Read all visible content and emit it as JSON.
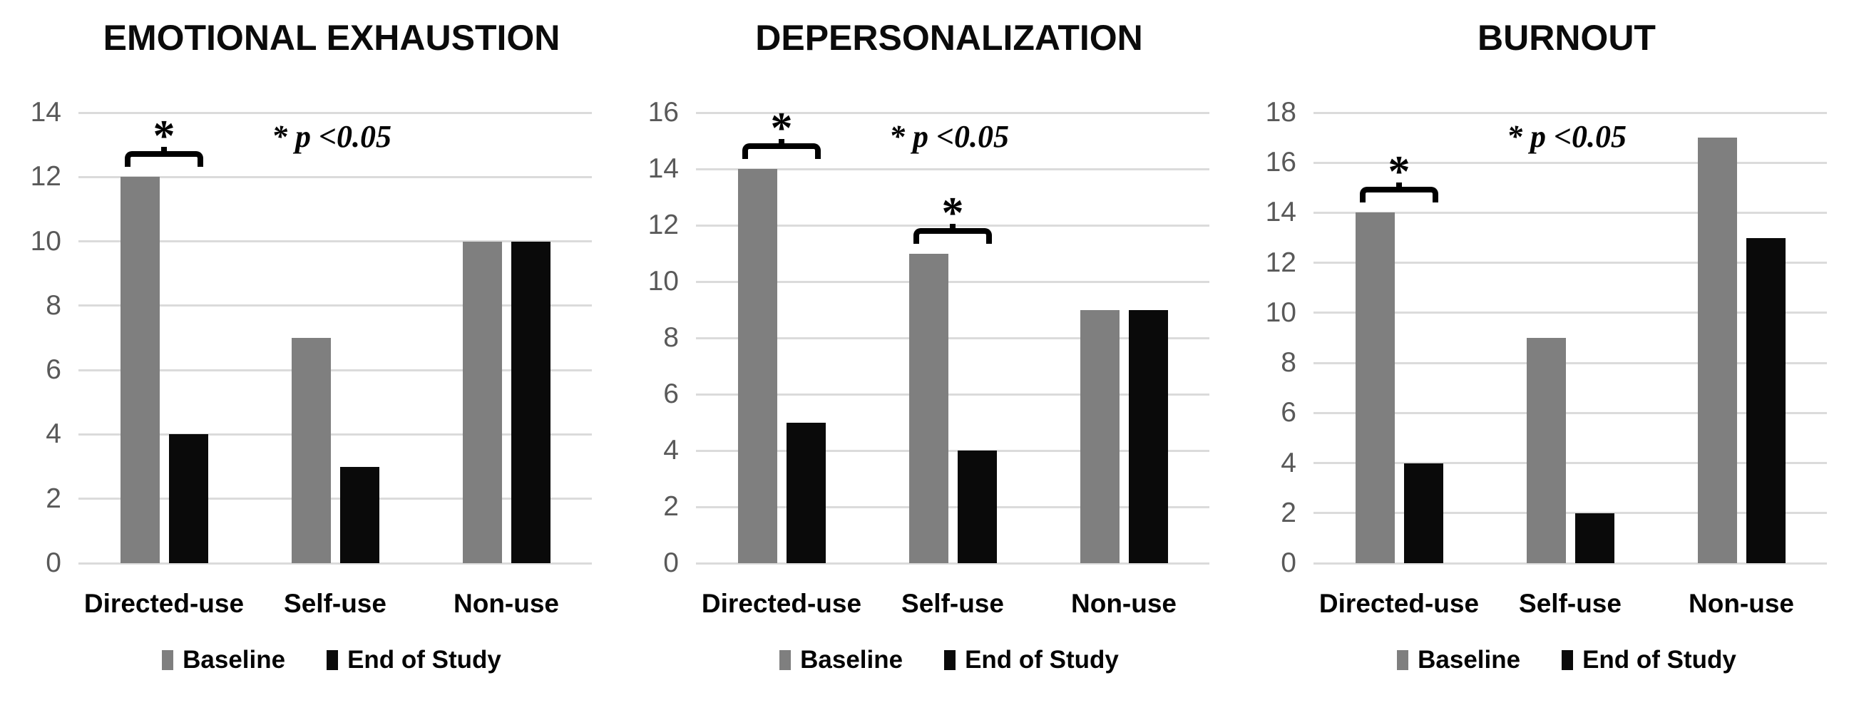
{
  "colors": {
    "baseline_bar": "#7f7f7f",
    "end_of_study_bar": "#0a0a0a",
    "gridline": "#dbdbdb",
    "tick_label": "#595959",
    "text": "#050505",
    "background": "#ffffff"
  },
  "legend": {
    "items": [
      {
        "label": "Baseline",
        "color": "#7f7f7f"
      },
      {
        "label": "End of Study",
        "color": "#0a0a0a"
      }
    ]
  },
  "chart_data": [
    {
      "type": "bar",
      "title": "EMOTIONAL EXHAUSTION",
      "categories": [
        "Directed-use",
        "Self-use",
        "Non-use"
      ],
      "series": [
        {
          "name": "Baseline",
          "values": [
            12,
            7,
            10
          ]
        },
        {
          "name": "End of Study",
          "values": [
            4,
            3,
            10
          ]
        }
      ],
      "ylim": [
        0,
        14
      ],
      "ytick_step": 2,
      "grid": true,
      "legend_position": "bottom",
      "annotation": "* p <0.05",
      "significance_brackets": [
        {
          "category": "Directed-use",
          "label": "*"
        }
      ]
    },
    {
      "type": "bar",
      "title": "DEPERSONALIZATION",
      "categories": [
        "Directed-use",
        "Self-use",
        "Non-use"
      ],
      "series": [
        {
          "name": "Baseline",
          "values": [
            14,
            11,
            9
          ]
        },
        {
          "name": "End of Study",
          "values": [
            5,
            4,
            9
          ]
        }
      ],
      "ylim": [
        0,
        16
      ],
      "ytick_step": 2,
      "grid": true,
      "legend_position": "bottom",
      "annotation": "* p <0.05",
      "significance_brackets": [
        {
          "category": "Directed-use",
          "label": "*"
        },
        {
          "category": "Self-use",
          "label": "*"
        }
      ]
    },
    {
      "type": "bar",
      "title": "BURNOUT",
      "categories": [
        "Directed-use",
        "Self-use",
        "Non-use"
      ],
      "series": [
        {
          "name": "Baseline",
          "values": [
            14,
            9,
            17
          ]
        },
        {
          "name": "End of Study",
          "values": [
            4,
            2,
            13
          ]
        }
      ],
      "ylim": [
        0,
        18
      ],
      "ytick_step": 2,
      "grid": true,
      "legend_position": "bottom",
      "annotation": "* p <0.05",
      "significance_brackets": [
        {
          "category": "Directed-use",
          "label": "*"
        }
      ]
    }
  ]
}
